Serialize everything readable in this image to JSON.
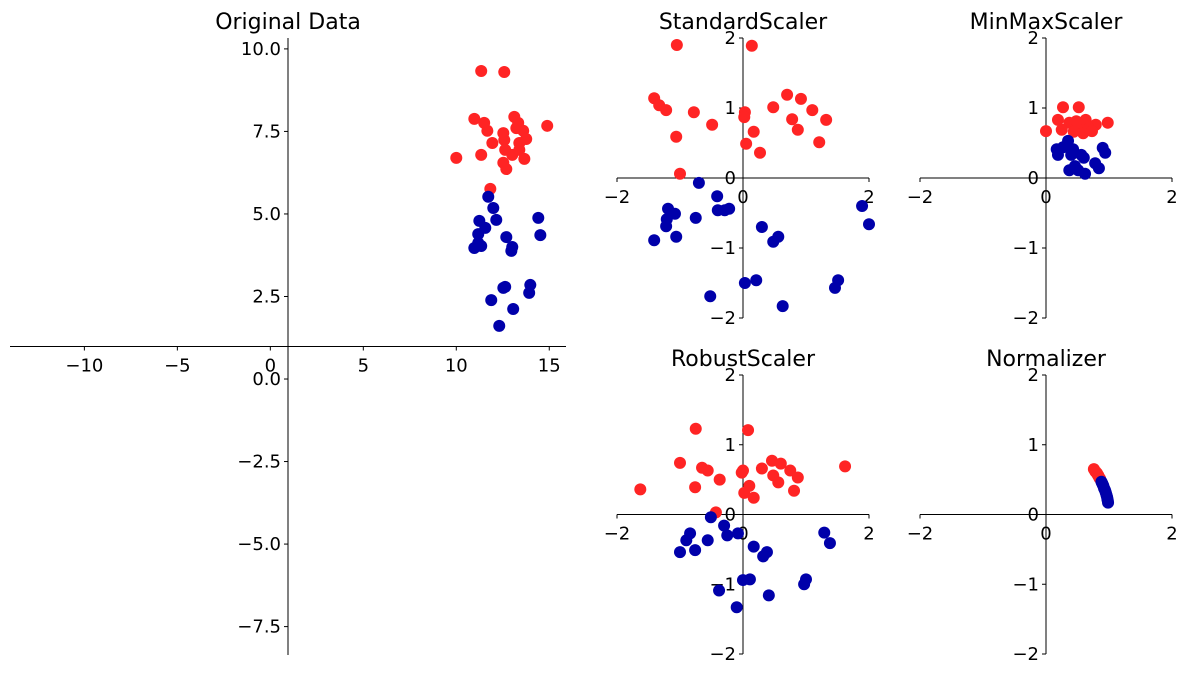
{
  "chart_data": [
    {
      "type": "scatter",
      "title": "Original Data",
      "spines": "center",
      "xlim": [
        -14,
        15.9
      ],
      "ylim": [
        -8.36,
        10.33
      ],
      "xticks": [
        {
          "value": -10,
          "label": "−10"
        },
        {
          "value": -5,
          "label": "−5"
        },
        0,
        5,
        10,
        15
      ],
      "yticks": [
        {
          "value": -7.5,
          "label": "−7.5"
        },
        {
          "value": -5,
          "label": "−5.0"
        },
        {
          "value": -2.5,
          "label": "−2.5"
        },
        {
          "value": 0,
          "label": "0.0"
        },
        2.5,
        {
          "value": 5,
          "label": "5.0"
        },
        7.5,
        {
          "value": 10,
          "label": "10.0"
        }
      ],
      "series": [
        {
          "color": "#ff2424",
          "x": [
            11.34,
            12.58,
            10.97,
            10.0,
            11.5,
            11.67,
            11.34,
            11.94,
            11.83,
            12.53,
            12.58,
            13.12,
            13.33,
            13.6,
            13.39,
            13.76,
            13.01,
            13.39,
            12.63,
            12.53,
            12.69,
            13.66,
            14.89,
            13.23
          ],
          "y": [
            9.33,
            9.3,
            7.88,
            6.7,
            7.76,
            7.52,
            6.79,
            7.15,
            5.76,
            7.45,
            7.24,
            7.94,
            7.76,
            7.52,
            7.15,
            7.27,
            6.79,
            6.94,
            6.94,
            6.55,
            6.36,
            6.67,
            7.67,
            7.6
          ]
        },
        {
          "color": "#0000aa",
          "x": [
            11.72,
            11.99,
            11.24,
            12.15,
            11.56,
            11.18,
            11.18,
            10.97,
            11.34,
            12.69,
            13.01,
            12.96,
            14.41,
            14.52,
            11.88,
            12.53,
            12.63,
            13.06,
            13.98,
            13.92,
            12.31
          ],
          "y": [
            5.52,
            5.18,
            4.79,
            4.82,
            4.58,
            4.39,
            4.12,
            3.97,
            4.03,
            4.3,
            4.0,
            3.88,
            4.88,
            4.36,
            2.39,
            2.76,
            2.79,
            2.12,
            2.85,
            2.61,
            1.61
          ]
        }
      ]
    },
    {
      "type": "scatter",
      "title": "StandardScaler",
      "spines": "center",
      "xlim": [
        -2,
        2
      ],
      "ylim": [
        -2,
        2
      ],
      "xticks": [
        {
          "value": -2,
          "label": "−2"
        },
        0,
        2
      ],
      "yticks": [
        {
          "value": -2,
          "label": "−2"
        },
        {
          "value": -1,
          "label": "−1"
        },
        0,
        1,
        2
      ],
      "series": [
        {
          "color": "#ff2424",
          "x": [
            -1.05,
            0.14,
            -1.41,
            -1.33,
            -1.22,
            -0.78,
            -0.49,
            -1.06,
            0.03,
            0.02,
            0.17,
            0.27,
            0.05,
            0.48,
            0.7,
            0.92,
            1.1,
            0.78,
            0.87,
            1.32,
            1.21,
            -1.0
          ],
          "y": [
            1.9,
            1.89,
            1.14,
            1.04,
            0.97,
            0.94,
            0.76,
            0.59,
            0.94,
            0.87,
            0.66,
            0.36,
            0.49,
            1.01,
            1.19,
            1.13,
            0.97,
            0.84,
            0.69,
            0.83,
            0.51,
            0.06
          ]
        },
        {
          "color": "#0000aa",
          "x": [
            -0.7,
            -0.41,
            -1.19,
            -1.08,
            -1.21,
            -1.22,
            -0.75,
            -0.4,
            -0.29,
            -0.22,
            -1.41,
            -1.06,
            0.3,
            0.56,
            0.48,
            1.89,
            2.0,
            -0.52,
            0.03,
            0.21,
            0.63,
            1.51,
            1.46
          ],
          "y": [
            -0.07,
            -0.26,
            -0.44,
            -0.51,
            -0.59,
            -0.69,
            -0.57,
            -0.46,
            -0.46,
            -0.44,
            -0.89,
            -0.84,
            -0.7,
            -0.84,
            -0.91,
            -0.4,
            -0.66,
            -1.69,
            -1.5,
            -1.46,
            -1.83,
            -1.46,
            -1.57
          ]
        }
      ]
    },
    {
      "type": "scatter",
      "title": "MinMaxScaler",
      "spines": "center",
      "xlim": [
        -2,
        2
      ],
      "ylim": [
        -2,
        2
      ],
      "xticks": [
        {
          "value": -2,
          "label": "−2"
        },
        0,
        2
      ],
      "yticks": [
        {
          "value": -2,
          "label": "−2"
        },
        {
          "value": -1,
          "label": "−1"
        },
        0,
        1,
        2
      ],
      "series": [
        {
          "color": "#ff2424",
          "x": [
            0,
            0.27,
            0.52,
            0.19,
            0.37,
            0.54,
            0.63,
            0.79,
            0.98,
            0.44,
            0.59,
            0.25,
            0.68,
            0.73,
            0.48
          ],
          "y": [
            0.67,
            1.01,
            1.01,
            0.83,
            0.79,
            0.74,
            0.83,
            0.76,
            0.79,
            0.66,
            0.64,
            0.69,
            0.71,
            0.67,
            0.81
          ]
        },
        {
          "color": "#0000aa",
          "x": [
            0.19,
            0.27,
            0.35,
            0.43,
            0.17,
            0.4,
            0.56,
            0.6,
            0.37,
            0.51,
            0.62,
            0.84,
            0.78,
            0.9,
            0.94,
            0.46
          ],
          "y": [
            0.33,
            0.44,
            0.53,
            0.41,
            0.41,
            0.33,
            0.33,
            0.29,
            0.11,
            0.11,
            0.06,
            0.14,
            0.21,
            0.43,
            0.36,
            0.17
          ]
        }
      ]
    },
    {
      "type": "scatter",
      "title": "RobustScaler",
      "spines": "center",
      "xlim": [
        -2,
        2
      ],
      "ylim": [
        -2,
        2
      ],
      "xticks": [
        {
          "value": -2,
          "label": "−2"
        },
        0,
        2
      ],
      "yticks": [
        {
          "value": -2,
          "label": "−2"
        },
        {
          "value": -1,
          "label": "−1"
        },
        0,
        1,
        2
      ],
      "series": [
        {
          "color": "#ff2424",
          "x": [
            -1.63,
            -0.75,
            0.08,
            -1.0,
            -0.65,
            -0.56,
            -0.37,
            -0.76,
            -0.02,
            0,
            0.3,
            0.46,
            0.6,
            0.75,
            0.87,
            1.62,
            0.48,
            0.56,
            0.81,
            0.1,
            0.02,
            0.17,
            -0.43
          ],
          "y": [
            0.36,
            1.23,
            1.21,
            0.74,
            0.67,
            0.63,
            0.5,
            0.39,
            0.6,
            0.63,
            0.66,
            0.77,
            0.73,
            0.63,
            0.53,
            0.69,
            0.56,
            0.46,
            0.34,
            0.41,
            0.31,
            0.24,
            0.03
          ]
        },
        {
          "color": "#0000aa",
          "x": [
            -0.51,
            -0.84,
            -0.9,
            -0.76,
            -1.0,
            -0.3,
            -0.25,
            -0.56,
            -0.08,
            0.17,
            0.38,
            0.32,
            1.29,
            1.38,
            -0.38,
            0,
            0.11,
            -0.1,
            0.41,
            1.0,
            0.97
          ],
          "y": [
            -0.04,
            -0.27,
            -0.37,
            -0.51,
            -0.54,
            -0.16,
            -0.3,
            -0.37,
            -0.27,
            -0.46,
            -0.54,
            -0.6,
            -0.26,
            -0.41,
            -1.09,
            -0.94,
            -0.93,
            -1.33,
            -1.16,
            -0.93,
            -1.0
          ]
        }
      ]
    },
    {
      "type": "scatter",
      "title": "Normalizer",
      "spines": "center",
      "xlim": [
        -2,
        2
      ],
      "ylim": [
        -2,
        2
      ],
      "xticks": [
        {
          "value": -2,
          "label": "−2"
        },
        0,
        2
      ],
      "yticks": [
        {
          "value": -2,
          "label": "−2"
        },
        {
          "value": -1,
          "label": "−1"
        },
        0,
        1,
        2
      ],
      "series": [
        {
          "color": "#ff2424",
          "x": [
            0.76,
            0.78,
            0.79,
            0.8,
            0.81,
            0.82,
            0.83,
            0.84,
            0.85,
            0.86
          ],
          "y": [
            0.65,
            0.62,
            0.61,
            0.6,
            0.59,
            0.57,
            0.56,
            0.54,
            0.52,
            0.51
          ]
        },
        {
          "color": "#0000aa",
          "x": [
            0.88,
            0.89,
            0.9,
            0.91,
            0.92,
            0.93,
            0.94,
            0.95,
            0.96,
            0.97,
            0.975,
            0.98,
            0.985
          ],
          "y": [
            0.47,
            0.45,
            0.43,
            0.41,
            0.38,
            0.36,
            0.34,
            0.31,
            0.28,
            0.25,
            0.22,
            0.2,
            0.17
          ]
        }
      ]
    }
  ]
}
